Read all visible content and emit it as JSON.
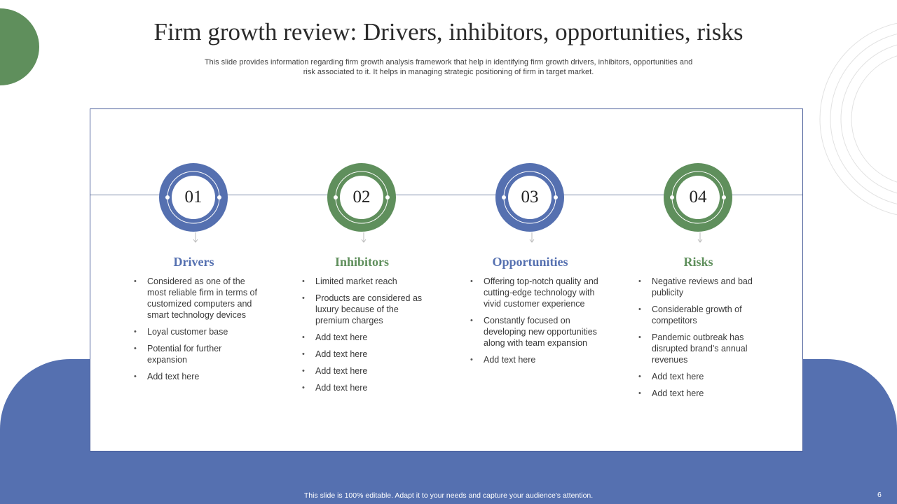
{
  "slide": {
    "title": "Firm growth review: Drivers, inhibitors, opportunities, risks",
    "subtitle": "This slide provides information regarding firm growth analysis framework that help in identifying firm growth drivers, inhibitors, opportunities and risk associated to it. It helps in managing strategic positioning of firm in target market.",
    "footer_note": "This slide is 100% editable. Adapt it to your needs and capture your audience's attention.",
    "page_number": "6"
  },
  "colors": {
    "blue": "#5570b0",
    "green": "#5f8f5c"
  },
  "steps": [
    {
      "number": "01",
      "heading": "Drivers",
      "color": "#5570b0",
      "bullets": [
        "Considered as one of the most reliable firm in terms of customized computers and smart technology devices",
        "Loyal customer base",
        "Potential for further expansion",
        "Add text here"
      ]
    },
    {
      "number": "02",
      "heading": "Inhibitors",
      "color": "#5f8f5c",
      "bullets": [
        "Limited market reach",
        "Products are considered as luxury because of the premium charges",
        "Add text here",
        "Add text here",
        "Add text here",
        "Add text here"
      ]
    },
    {
      "number": "03",
      "heading": "Opportunities",
      "color": "#5570b0",
      "bullets": [
        "Offering top-notch quality and cutting-edge technology with vivid customer experience",
        "Constantly focused on developing new opportunities along with team expansion",
        "Add text here"
      ]
    },
    {
      "number": "04",
      "heading": "Risks",
      "color": "#5f8f5c",
      "bullets": [
        "Negative reviews and bad publicity",
        "Considerable growth of competitors",
        "Pandemic outbreak has disrupted brand's annual revenues",
        "Add text here",
        "Add text here"
      ]
    }
  ]
}
